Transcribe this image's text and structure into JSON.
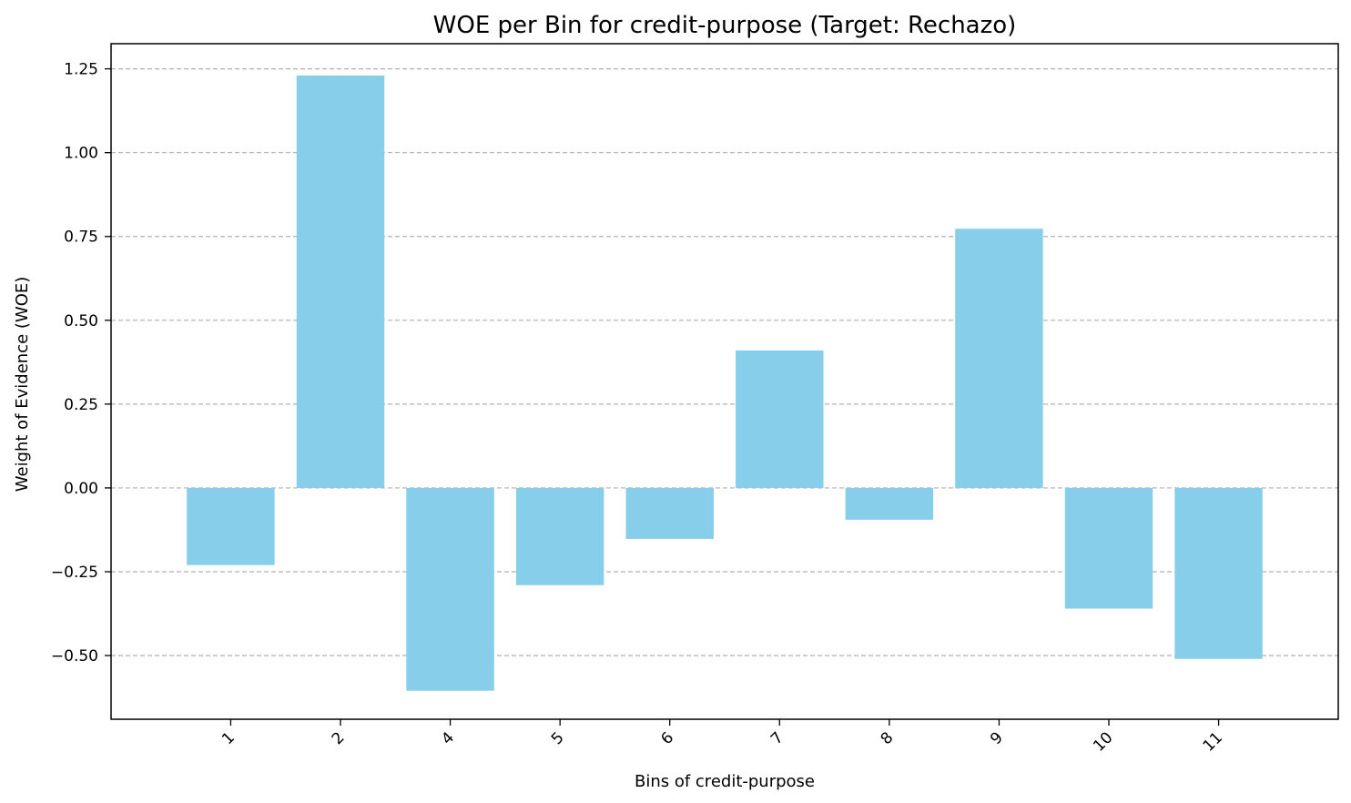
{
  "chart_data": {
    "type": "bar",
    "title": "WOE per Bin for credit-purpose (Target: Rechazo)",
    "xlabel": "Bins of credit-purpose",
    "ylabel": "Weight of Evidence (WOE)",
    "categories": [
      "1",
      "2",
      "4",
      "5",
      "6",
      "7",
      "8",
      "9",
      "10",
      "11"
    ],
    "values": [
      -0.23,
      1.23,
      -0.605,
      -0.29,
      -0.152,
      0.41,
      -0.095,
      0.773,
      -0.36,
      -0.51
    ],
    "ylim": [
      -0.69,
      1.325
    ],
    "yticks": [
      -0.5,
      -0.25,
      0.0,
      0.25,
      0.5,
      0.75,
      1.0,
      1.25
    ],
    "ytick_labels": [
      "−0.50",
      "−0.25",
      "0.00",
      "0.25",
      "0.50",
      "0.75",
      "1.00",
      "1.25"
    ],
    "xtick_rotation": -45,
    "grid": {
      "axis": "y",
      "style": "dashed",
      "color": "#b0b0b0"
    },
    "colors": {
      "bar": "#87ceeb",
      "axes": "#000000"
    }
  }
}
